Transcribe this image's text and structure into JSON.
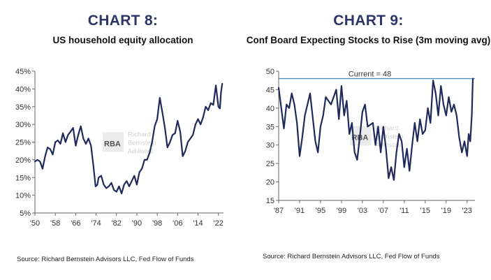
{
  "colors": {
    "heading": "#2e3568",
    "line": "#1f2a5c",
    "reference": "#4a90c2",
    "watermark": "#d4d4d4"
  },
  "watermark": {
    "mark": "RBA",
    "lines": [
      "Richard",
      "Bernstein",
      "Advisors"
    ]
  },
  "chart_data": [
    {
      "type": "line",
      "chart_label": "CHART 8:",
      "title": "US household equity allocation",
      "source": "Source: Richard Bernstein Advisors LLC, Fed Flow of Funds",
      "ylim": [
        5,
        45
      ],
      "y_ticks": [
        5,
        10,
        15,
        20,
        25,
        30,
        35,
        40,
        45
      ],
      "y_tick_labels": [
        "5%",
        "10%",
        "15%",
        "20%",
        "25%",
        "30%",
        "35%",
        "40%",
        "45%"
      ],
      "xlim": [
        1950,
        2024
      ],
      "x_ticks": [
        1950,
        1958,
        1966,
        1974,
        1982,
        1990,
        1998,
        2006,
        2014,
        2022
      ],
      "x_tick_labels": [
        "'50",
        "'58",
        "'66",
        "'74",
        "'82",
        "'90",
        "'98",
        "'06",
        "'14",
        "'22"
      ],
      "series": [
        {
          "name": "US household equity allocation (%)",
          "x": [
            1950,
            1951,
            1952,
            1953,
            1954,
            1955,
            1956,
            1957,
            1958,
            1959,
            1960,
            1961,
            1962,
            1963,
            1964,
            1965,
            1966,
            1967,
            1968,
            1969,
            1970,
            1971,
            1972,
            1973,
            1973.8,
            1974.5,
            1975,
            1976,
            1977,
            1978,
            1979,
            1980,
            1981,
            1982,
            1983,
            1984,
            1985,
            1986,
            1987,
            1988,
            1989,
            1990,
            1991,
            1992,
            1993,
            1994,
            1995,
            1996,
            1997,
            1998,
            1999,
            2000,
            2001,
            2002,
            2003,
            2004,
            2005,
            2006,
            2007,
            2008,
            2009,
            2010,
            2011,
            2012,
            2013,
            2014,
            2015,
            2016,
            2017,
            2018,
            2019,
            2020,
            2021,
            2022,
            2022.6,
            2023,
            2023.5
          ],
          "values": [
            19.5,
            20,
            19.5,
            17.5,
            21,
            23.5,
            23,
            21.5,
            25,
            25.5,
            24.5,
            27.5,
            25,
            27,
            28,
            29,
            24,
            27,
            29.5,
            26,
            24.5,
            26,
            24,
            18,
            12.5,
            13,
            15,
            15.5,
            13,
            12,
            12.5,
            13.5,
            11.5,
            11,
            12.5,
            10.5,
            13,
            14,
            12.5,
            14,
            15.5,
            13,
            16.5,
            17.5,
            20,
            20,
            22,
            25,
            29.5,
            31.5,
            37.5,
            33.5,
            29,
            23.5,
            25,
            27,
            27.5,
            31,
            28,
            21,
            22.5,
            25,
            26,
            27,
            30,
            31.5,
            30,
            32,
            35,
            34,
            36,
            35.5,
            41,
            35,
            34.5,
            39,
            41.5
          ]
        }
      ]
    },
    {
      "type": "line",
      "chart_label": "CHART 9:",
      "title": "Conf Board Expecting Stocks to Rise (3m moving avg)",
      "source": "Source: Richard Bernstein Advisors LLC, Fed Flow of Funds",
      "annotation": "Current = 48",
      "reference_value": 48,
      "ylim": [
        15,
        50
      ],
      "y_ticks": [
        15,
        20,
        25,
        30,
        35,
        40,
        45,
        50
      ],
      "y_tick_labels": [
        "15",
        "20",
        "25",
        "30",
        "35",
        "40",
        "45",
        "50"
      ],
      "xlim": [
        1987,
        2024.5
      ],
      "x_ticks": [
        1987,
        1991,
        1995,
        1999,
        2003,
        2007,
        2011,
        2015,
        2019,
        2023
      ],
      "x_tick_labels": [
        "'87",
        "'91",
        "'95",
        "'99",
        "'03",
        "'07",
        "'11",
        "'15",
        "'19",
        "'23"
      ],
      "series": [
        {
          "name": "Expecting stocks to rise (%)",
          "x": [
            1987,
            1987.5,
            1988,
            1988.5,
            1989,
            1989.5,
            1990,
            1990.5,
            1991,
            1991.5,
            1992,
            1993,
            1994,
            1994.5,
            1995,
            1995.5,
            1996,
            1997,
            1998,
            1998.5,
            1999,
            1999.5,
            2000,
            2000.5,
            2001,
            2001.5,
            2002,
            2002.5,
            2003,
            2003.5,
            2004,
            2005,
            2005.5,
            2006,
            2006.5,
            2007,
            2007.5,
            2008,
            2008.5,
            2009,
            2009.5,
            2010,
            2010.5,
            2011,
            2011.5,
            2012,
            2012.5,
            2013,
            2013.5,
            2014,
            2014.5,
            2015,
            2015.5,
            2016,
            2016.5,
            2017,
            2017.5,
            2018,
            2018.5,
            2019,
            2019.5,
            2020,
            2020.5,
            2021,
            2021.5,
            2022,
            2022.5,
            2023,
            2023.3,
            2023.6,
            2023.9,
            2024.1
          ],
          "values": [
            45.5,
            40,
            34.5,
            41,
            40,
            44,
            41,
            36,
            27,
            32,
            38,
            44,
            31,
            28,
            35,
            38,
            43,
            41,
            45,
            37,
            46,
            38,
            42,
            33,
            36,
            28,
            26,
            32,
            39,
            41,
            35,
            36,
            30,
            35,
            28,
            35,
            29,
            21,
            24,
            20.5,
            28,
            33,
            31,
            24,
            29,
            23,
            30,
            36,
            31,
            37,
            33,
            34,
            40,
            36,
            47.5,
            44,
            38,
            46,
            41,
            38,
            43,
            39,
            41,
            38,
            32,
            28,
            31,
            27,
            33,
            31,
            38,
            48
          ]
        }
      ]
    }
  ]
}
